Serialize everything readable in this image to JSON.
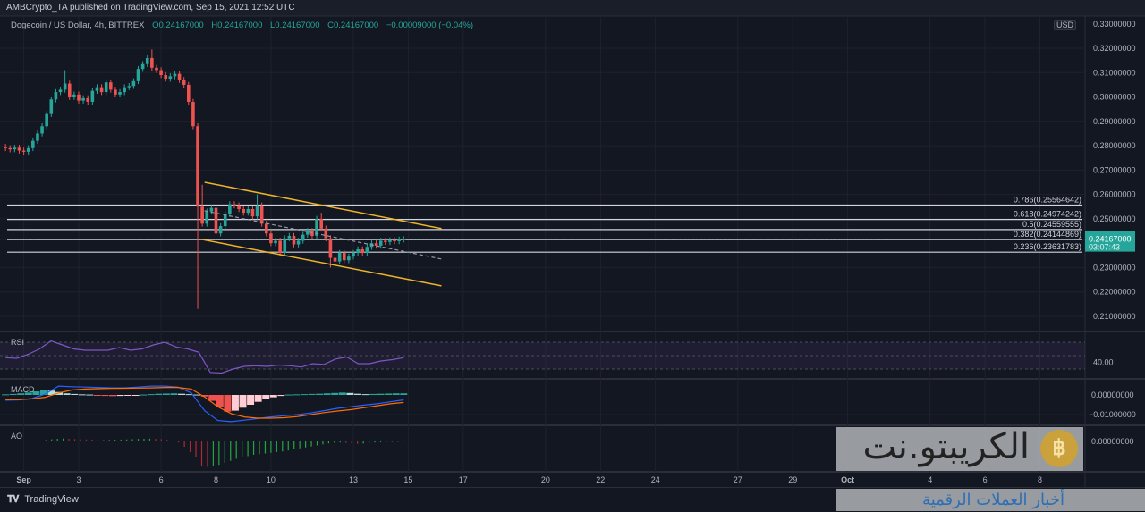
{
  "topbar": {
    "text": "AMBCrypto_TA published on TradingView.com, Sep 15, 2021 12:52 UTC"
  },
  "legend": {
    "symbol": "Dogecoin / US Dollar, 4h, BITTREX",
    "open": "O0.24167000",
    "high": "H0.24167000",
    "low": "L0.24167000",
    "close": "C0.24167000",
    "change": "−0.00009000 (−0.04%)"
  },
  "currency": "USD",
  "colors": {
    "background": "#131722",
    "up": "#26a69a",
    "down": "#ef5350",
    "channel": "#f0b429",
    "fib": "#d1d4dc",
    "rsi": "#7e57c2",
    "macd": "#2962ff",
    "signal": "#ff6d00",
    "ao_up": "#26a641",
    "ao_down": "#b22833"
  },
  "chart_data": {
    "type": "candlestick",
    "interval": "4h",
    "first_candle": "2021-08-31T08:00:00Z",
    "ylim": [
      0.205,
      0.325
    ],
    "price_ticks": [
      "0.32000000",
      "0.31000000",
      "0.30000000",
      "0.29000000",
      "0.28000000",
      "0.27000000",
      "0.26000000",
      "0.25000000",
      "0.23000000",
      "0.22000000",
      "0.21000000"
    ],
    "top_cut_tick": "0.33000000",
    "close": [
      0.279,
      0.2785,
      0.2792,
      0.278,
      0.2775,
      0.279,
      0.282,
      0.285,
      0.288,
      0.293,
      0.299,
      0.302,
      0.303,
      0.3055,
      0.3,
      0.301,
      0.2985,
      0.2995,
      0.298,
      0.3025,
      0.304,
      0.302,
      0.306,
      0.303,
      0.301,
      0.302,
      0.304,
      0.3045,
      0.3065,
      0.3115,
      0.3135,
      0.316,
      0.312,
      0.311,
      0.309,
      0.3075,
      0.3085,
      0.3095,
      0.307,
      0.305,
      0.298,
      0.288,
      0.255,
      0.248,
      0.253,
      0.2545,
      0.244,
      0.247,
      0.252,
      0.256,
      0.2555,
      0.254,
      0.2525,
      0.254,
      0.251,
      0.2555,
      0.248,
      0.244,
      0.24,
      0.241,
      0.236,
      0.242,
      0.243,
      0.2395,
      0.241,
      0.2435,
      0.245,
      0.243,
      0.25,
      0.246,
      0.242,
      0.234,
      0.2325,
      0.236,
      0.233,
      0.2345,
      0.236,
      0.2375,
      0.236,
      0.2385,
      0.24,
      0.239,
      0.241,
      0.2405,
      0.2412,
      0.2408,
      0.2415,
      0.2417
    ],
    "extremes": [
      {
        "index": 13,
        "high": 0.311
      },
      {
        "index": 32,
        "high": 0.3195
      },
      {
        "index": 42,
        "low": 0.213
      },
      {
        "index": 43,
        "high": 0.264
      },
      {
        "index": 55,
        "high": 0.26
      },
      {
        "index": 69,
        "high": 0.2525
      },
      {
        "index": 71,
        "low": 0.23
      }
    ],
    "last_price": {
      "value": "0.24167000",
      "countdown": "03:07:43"
    },
    "fib_levels": [
      {
        "ratio": "0.786",
        "price": 0.25564642,
        "label": "0.786(0.25564642)"
      },
      {
        "ratio": "0.618",
        "price": 0.24974242,
        "label": "0.618(0.24974242)"
      },
      {
        "ratio": "0.5",
        "price": 0.24559555,
        "label": "0.5(0.24559555)"
      },
      {
        "ratio": "0.382",
        "price": 0.24144869,
        "label": "0.382(0.24144869)"
      },
      {
        "ratio": "0.236",
        "price": 0.23631783,
        "label": "0.236(0.23631783)"
      }
    ],
    "channel": {
      "upper": [
        {
          "t": "2021-09-07T14:00:00Z",
          "p": 0.265
        },
        {
          "t": "2021-09-16T05:00:00Z",
          "p": 0.246
        }
      ],
      "lower": [
        {
          "t": "2021-09-07T12:00:00Z",
          "p": 0.2415
        },
        {
          "t": "2021-09-16T05:00:00Z",
          "p": 0.2225
        }
      ],
      "mid": [
        {
          "t": "2021-09-07T14:00:00Z",
          "p": 0.2533
        },
        {
          "t": "2021-09-16T05:00:00Z",
          "p": 0.2335
        }
      ]
    },
    "time_ticks": [
      {
        "label": "Sep",
        "date": "2021-09-01"
      },
      {
        "label": "3",
        "date": "2021-09-03"
      },
      {
        "label": "6",
        "date": "2021-09-06"
      },
      {
        "label": "8",
        "date": "2021-09-08"
      },
      {
        "label": "10",
        "date": "2021-09-10"
      },
      {
        "label": "13",
        "date": "2021-09-13"
      },
      {
        "label": "15",
        "date": "2021-09-15"
      },
      {
        "label": "17",
        "date": "2021-09-17"
      },
      {
        "label": "20",
        "date": "2021-09-20"
      },
      {
        "label": "22",
        "date": "2021-09-22"
      },
      {
        "label": "24",
        "date": "2021-09-24"
      },
      {
        "label": "27",
        "date": "2021-09-27"
      },
      {
        "label": "29",
        "date": "2021-09-29"
      },
      {
        "label": "Oct",
        "date": "2021-10-01"
      },
      {
        "label": "4",
        "date": "2021-10-04"
      },
      {
        "label": "6",
        "date": "2021-10-06"
      },
      {
        "label": "8",
        "date": "2021-10-08"
      }
    ],
    "rsi": {
      "label": "RSI",
      "band": [
        30,
        70
      ],
      "tick": "40.00",
      "values": [
        47,
        46,
        52,
        60,
        72,
        66,
        60,
        58,
        58,
        58,
        62,
        58,
        60,
        66,
        70,
        63,
        60,
        55,
        25,
        24,
        30,
        34,
        35,
        34,
        36,
        35,
        33,
        38,
        37,
        45,
        48,
        38,
        38,
        42,
        44,
        47
      ]
    },
    "macd": {
      "label": "MACD",
      "ticks": [
        "0.00000000",
        "−0.01000000"
      ],
      "macd": [
        -0.0027,
        -0.0025,
        -0.0018,
        0.0005,
        0.0045,
        0.0042,
        0.004,
        0.0038,
        0.0036,
        0.0036,
        0.004,
        0.0045,
        0.0045,
        0.004,
        0.001,
        -0.008,
        -0.013,
        -0.0136,
        -0.0128,
        -0.012,
        -0.0112,
        -0.0106,
        -0.01,
        -0.0092,
        -0.008,
        -0.0068,
        -0.006,
        -0.0052,
        -0.0045,
        -0.0035,
        -0.0025
      ],
      "signal": [
        -0.0024,
        -0.0023,
        -0.002,
        -0.0012,
        0.001,
        0.0025,
        0.003,
        0.0032,
        0.0033,
        0.0034,
        0.0035,
        0.0036,
        0.0038,
        0.0038,
        0.003,
        -0.001,
        -0.006,
        -0.0095,
        -0.0112,
        -0.0118,
        -0.0118,
        -0.0116,
        -0.011,
        -0.01,
        -0.009,
        -0.0082,
        -0.0075,
        -0.0065,
        -0.0055,
        -0.0045,
        -0.0038
      ],
      "hist": [
        0.0003,
        0.0005,
        0.0008,
        0.0012,
        0.0018,
        0.0024,
        0.0022,
        0.0015,
        0.0008,
        0.0005,
        0.0003,
        0.0002,
        -0.0002,
        -0.0005,
        -0.0006,
        -0.0005,
        -0.0004,
        -0.0003,
        0.0002,
        0.0004,
        0.0006,
        0.0007,
        0.0008,
        0.0006,
        0.0004,
        0.0002,
        -0.0008,
        -0.003,
        -0.006,
        -0.0085,
        -0.008,
        -0.0065,
        -0.005,
        -0.0035,
        -0.0022,
        -0.0012,
        -0.0005,
        0.0002,
        0.0003,
        0.0004,
        0.0005,
        0.0006,
        0.0008,
        0.001,
        0.0012,
        0.001,
        0.0006,
        0.0004,
        0.0005,
        0.0006,
        0.0007,
        0.0008,
        0.0008
      ]
    },
    "ao": {
      "label": "AO",
      "tick": "0.00000000",
      "values": [
        0.0003,
        0.0004,
        0.0003,
        0.0002,
        0.0001,
        0.0002,
        0.0005,
        0.001,
        0.0016,
        0.002,
        0.0022,
        0.002,
        0.0018,
        0.0016,
        0.0015,
        0.0014,
        0.0013,
        0.0012,
        0.0012,
        0.0013,
        0.0014,
        0.0015,
        0.0017,
        0.0019,
        0.002,
        0.0021,
        0.0019,
        0.0017,
        0.0012,
        0.0005,
        -0.0008,
        -0.004,
        -0.008,
        -0.012,
        -0.018,
        -0.019,
        -0.0185,
        -0.0175,
        -0.016,
        -0.0145,
        -0.013,
        -0.012,
        -0.011,
        -0.01,
        -0.0095,
        -0.009,
        -0.0085,
        -0.008,
        -0.0075,
        -0.0068,
        -0.006,
        -0.0052,
        -0.0045,
        -0.0038,
        -0.003,
        -0.0022,
        -0.0015,
        -0.001,
        -0.0008,
        -0.0012,
        -0.0015,
        -0.0018,
        -0.0016,
        -0.0012,
        -0.0008,
        -0.0006,
        -0.0004,
        -0.0003,
        -0.0002,
        -0.0001
      ]
    }
  },
  "footer": {
    "brand": "TradingView"
  },
  "watermark": {
    "main": "الكريبتو.نت",
    "sub": "أخبار العملات الرقمية",
    "coin": "฿"
  }
}
